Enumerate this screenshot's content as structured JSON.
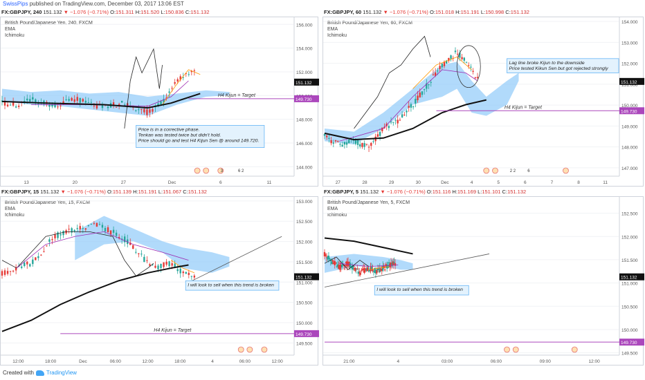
{
  "header": {
    "user": "SwissPips",
    "text": "published on TradingView.com, December 03, 2017 13:06 EST"
  },
  "footer": {
    "created": "Created with",
    "brand": "TradingView"
  },
  "colors": {
    "up": "#26a69a",
    "down": "#e53935",
    "cloud": "#90caf9",
    "ema": "#111111",
    "kijun": "#9c27b0",
    "lagging": "#222222",
    "tenkan": "#ff9800",
    "target": "#ab47bc",
    "note_bg": "#e3f2fd",
    "note_border": "#64b5f6"
  },
  "panels": [
    {
      "ticker": {
        "symbol": "FX:GBPJPY, 240",
        "last": "151.132",
        "change": "▼ −1.076 (−0.71%)",
        "o": "151.311",
        "h": "151.520",
        "l": "150.836",
        "c": "151.132"
      },
      "legend": [
        "British Pound/Japanese Yen, 240, FXCM",
        "EMA",
        "Ichimoku"
      ],
      "chart_data": {
        "type": "candlestick",
        "ylim": [
          143.2,
          156.6
        ],
        "yticks": [
          144,
          146,
          148,
          150,
          152,
          154,
          156
        ],
        "xticks": [
          "13",
          "20",
          "27",
          "Dec",
          "6",
          "11"
        ],
        "last_price": 151.132,
        "target": 149.73,
        "target_label": "H4 Kijun = Target"
      },
      "annotation": [
        "Price is in a corrective phase.",
        "Tenkan was tested twice but didn't hold.",
        "Price should go and test H4 Kijun Sen @ around 149.720."
      ],
      "events": [
        "3",
        "6 2"
      ]
    },
    {
      "ticker": {
        "symbol": "FX:GBPJPY, 60",
        "last": "151.132",
        "change": "▼ −1.076 (−0.71%)",
        "o": "151.018",
        "h": "151.191",
        "l": "150.998",
        "c": "151.132"
      },
      "legend": [
        "British Pound/Japanese Yen, 60, FXCM",
        "EMA",
        "Ichimoku"
      ],
      "chart_data": {
        "type": "candlestick",
        "ylim": [
          146.6,
          154.2
        ],
        "yticks": [
          147,
          148,
          149,
          150,
          151,
          152,
          153,
          154
        ],
        "xticks": [
          "27",
          "28",
          "29",
          "30",
          "Dec",
          "4",
          "5",
          "6",
          "7",
          "8",
          "11"
        ],
        "last_price": 151.132,
        "target": 149.73,
        "target_label": "H4 Kijun = Target"
      },
      "annotation": [
        "Lag line broke Kijun to the downside",
        "Price tested Kikun Sen but got rejected strongly"
      ],
      "events": [
        "2 2",
        "6"
      ]
    },
    {
      "ticker": {
        "symbol": "FX:GBPJPY, 15",
        "last": "151.132",
        "change": "▼ −1.076 (−0.71%)",
        "o": "151.139",
        "h": "151.191",
        "l": "151.067",
        "c": "151.132"
      },
      "legend": [
        "British Pound/Japanese Yen, 15, FXCM",
        "EMA",
        "Ichimoku"
      ],
      "chart_data": {
        "type": "candlestick",
        "ylim": [
          149.2,
          153.1
        ],
        "yticks": [
          149.5,
          150,
          150.5,
          151,
          151.5,
          152,
          152.5,
          153
        ],
        "xticks": [
          "12:00",
          "18:00",
          "Dec",
          "06:00",
          "12:00",
          "18:00",
          "4",
          "06:00",
          "12:00"
        ],
        "last_price": 151.132,
        "target": 149.73,
        "target_label": "H4 Kijun = Target"
      },
      "annotation": [
        "I will look to sell when this trend is broken"
      ],
      "events": []
    },
    {
      "ticker": {
        "symbol": "FX:GBPJPY, 5",
        "last": "151.132",
        "change": "▼ −1.076 (−0.71%)",
        "o": "151.116",
        "h": "151.169",
        "l": "151.101",
        "c": "151.132"
      },
      "legend": [
        "British Pound/Japanese Yen, 5, FXCM",
        "EMA",
        "Ichimoku"
      ],
      "chart_data": {
        "type": "candlestick",
        "ylim": [
          149.45,
          152.85
        ],
        "yticks": [
          149.5,
          150,
          150.5,
          151,
          151.5,
          152,
          152.5
        ],
        "xticks": [
          "21:00",
          "4",
          "03:00",
          "06:00",
          "09:00",
          "12:00"
        ],
        "last_price": 151.132,
        "target": 149.73,
        "target_label": ""
      },
      "annotation": [
        "I will look to sell when this trend is broken"
      ],
      "events": []
    }
  ]
}
